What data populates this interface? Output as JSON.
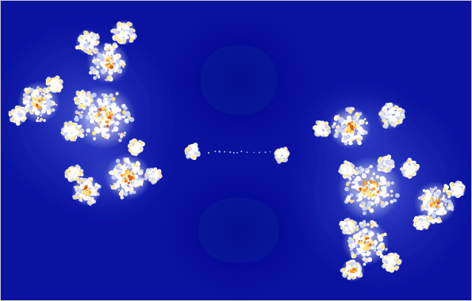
{
  "image": {
    "subject": "fractal-render",
    "colors": {
      "background": "#0b12a0",
      "background_dark": "#07107f",
      "halo": "#2b3ac6",
      "fringe": "#c9d3ff",
      "body": "#ffffff",
      "glow": "#ffe47a",
      "core": "#ff9a1e",
      "core_dark": "#d2560c"
    }
  }
}
